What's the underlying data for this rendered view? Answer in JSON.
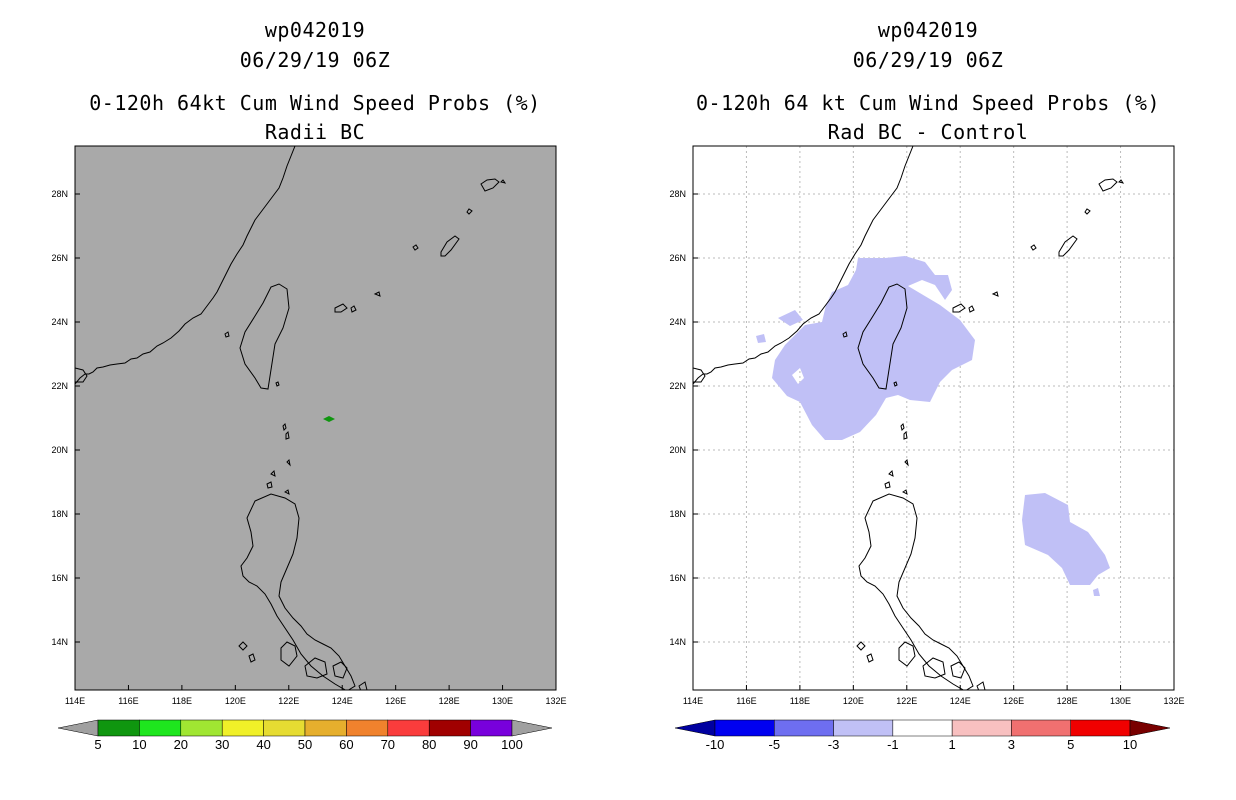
{
  "panels": [
    {
      "storm_id": "wp042019",
      "datetime": "06/29/19 06Z",
      "title": "0-120h 64kt Cum Wind Speed Probs (%)",
      "subtitle": "Radii BC",
      "background": "#a9a9a9",
      "gridlines": false,
      "lon_ticks": [
        "114E",
        "116E",
        "118E",
        "120E",
        "122E",
        "124E",
        "126E",
        "128E",
        "130E",
        "132E"
      ],
      "lat_ticks": [
        "28N",
        "26N",
        "24N",
        "22N",
        "20N",
        "18N",
        "16N",
        "14N"
      ],
      "colorbar": {
        "labels": [
          "5",
          "10",
          "20",
          "30",
          "40",
          "50",
          "60",
          "70",
          "80",
          "90",
          "100"
        ],
        "colors": [
          "#a0a0a0",
          "#0f960f",
          "#1ee61e",
          "#a0e632",
          "#f0f028",
          "#e6dc32",
          "#e6af2d",
          "#f0822d",
          "#fa3c3c",
          "#a00000",
          "#7800dc",
          "#a0a0a0"
        ]
      }
    },
    {
      "storm_id": "wp042019",
      "datetime": "06/29/19 06Z",
      "title": "0-120h 64 kt Cum Wind Speed Probs (%)",
      "subtitle": "Rad BC - Control",
      "background": "#ffffff",
      "gridlines": true,
      "lon_ticks": [
        "114E",
        "116E",
        "118E",
        "120E",
        "122E",
        "124E",
        "126E",
        "128E",
        "130E",
        "132E"
      ],
      "lat_ticks": [
        "28N",
        "26N",
        "24N",
        "22N",
        "20N",
        "18N",
        "16N",
        "14N"
      ],
      "colorbar": {
        "labels": [
          "-10",
          "-5",
          "-3",
          "-1",
          "1",
          "3",
          "5",
          "10"
        ],
        "colors": [
          "#0000a0",
          "#0000f0",
          "#6e6ef0",
          "#c0c0f6",
          "#ffffff",
          "#f8c0c0",
          "#f07070",
          "#f00000",
          "#780000"
        ]
      }
    }
  ]
}
